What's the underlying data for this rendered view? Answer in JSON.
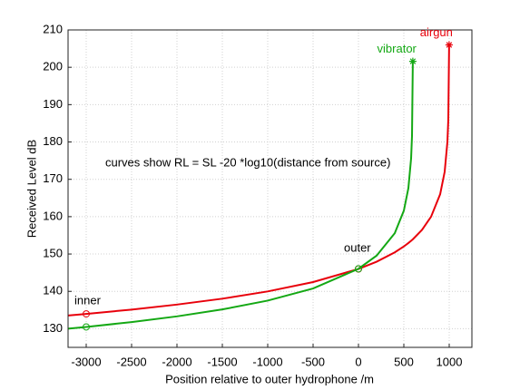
{
  "chart_data": {
    "type": "line",
    "xlabel": "Position relative to outer hydrophone /m",
    "ylabel": "Received Level dB",
    "annotations": [
      "curves show RL = SL -20 *log10(distance from source)",
      "inner",
      "outer"
    ],
    "x": [
      -3200,
      -3000,
      -2500,
      -2000,
      -1500,
      -1000,
      -500,
      0,
      200,
      400,
      500,
      550,
      580,
      590,
      599,
      700,
      800,
      900,
      950,
      980,
      990,
      999
    ],
    "series": [
      {
        "name": "airgun",
        "color": "#e8000b",
        "values": [
          133.54,
          133.96,
          135.12,
          136.46,
          138.04,
          139.98,
          142.48,
          146,
          147.94,
          150.44,
          152.02,
          152.94,
          153.54,
          153.76,
          153.94,
          156.46,
          159.98,
          166,
          172.02,
          179.98,
          186,
          206
        ]
      },
      {
        "name": "vibrator",
        "color": "#14a814",
        "values": [
          130.0,
          130.47,
          131.77,
          133.3,
          135.16,
          137.52,
          140.77,
          146.04,
          149.56,
          155.58,
          161.6,
          167.62,
          175.58,
          181.6,
          201.6,
          null,
          null,
          null,
          null,
          null,
          null,
          null
        ]
      }
    ],
    "xlim": [
      -3200,
      1250
    ],
    "ylim": [
      125,
      210
    ],
    "xticks": [
      -3000,
      -2500,
      -2000,
      -1500,
      -1000,
      -500,
      0,
      500,
      1000
    ],
    "yticks": [
      130,
      140,
      150,
      160,
      170,
      180,
      190,
      200,
      210
    ],
    "grid": true
  }
}
